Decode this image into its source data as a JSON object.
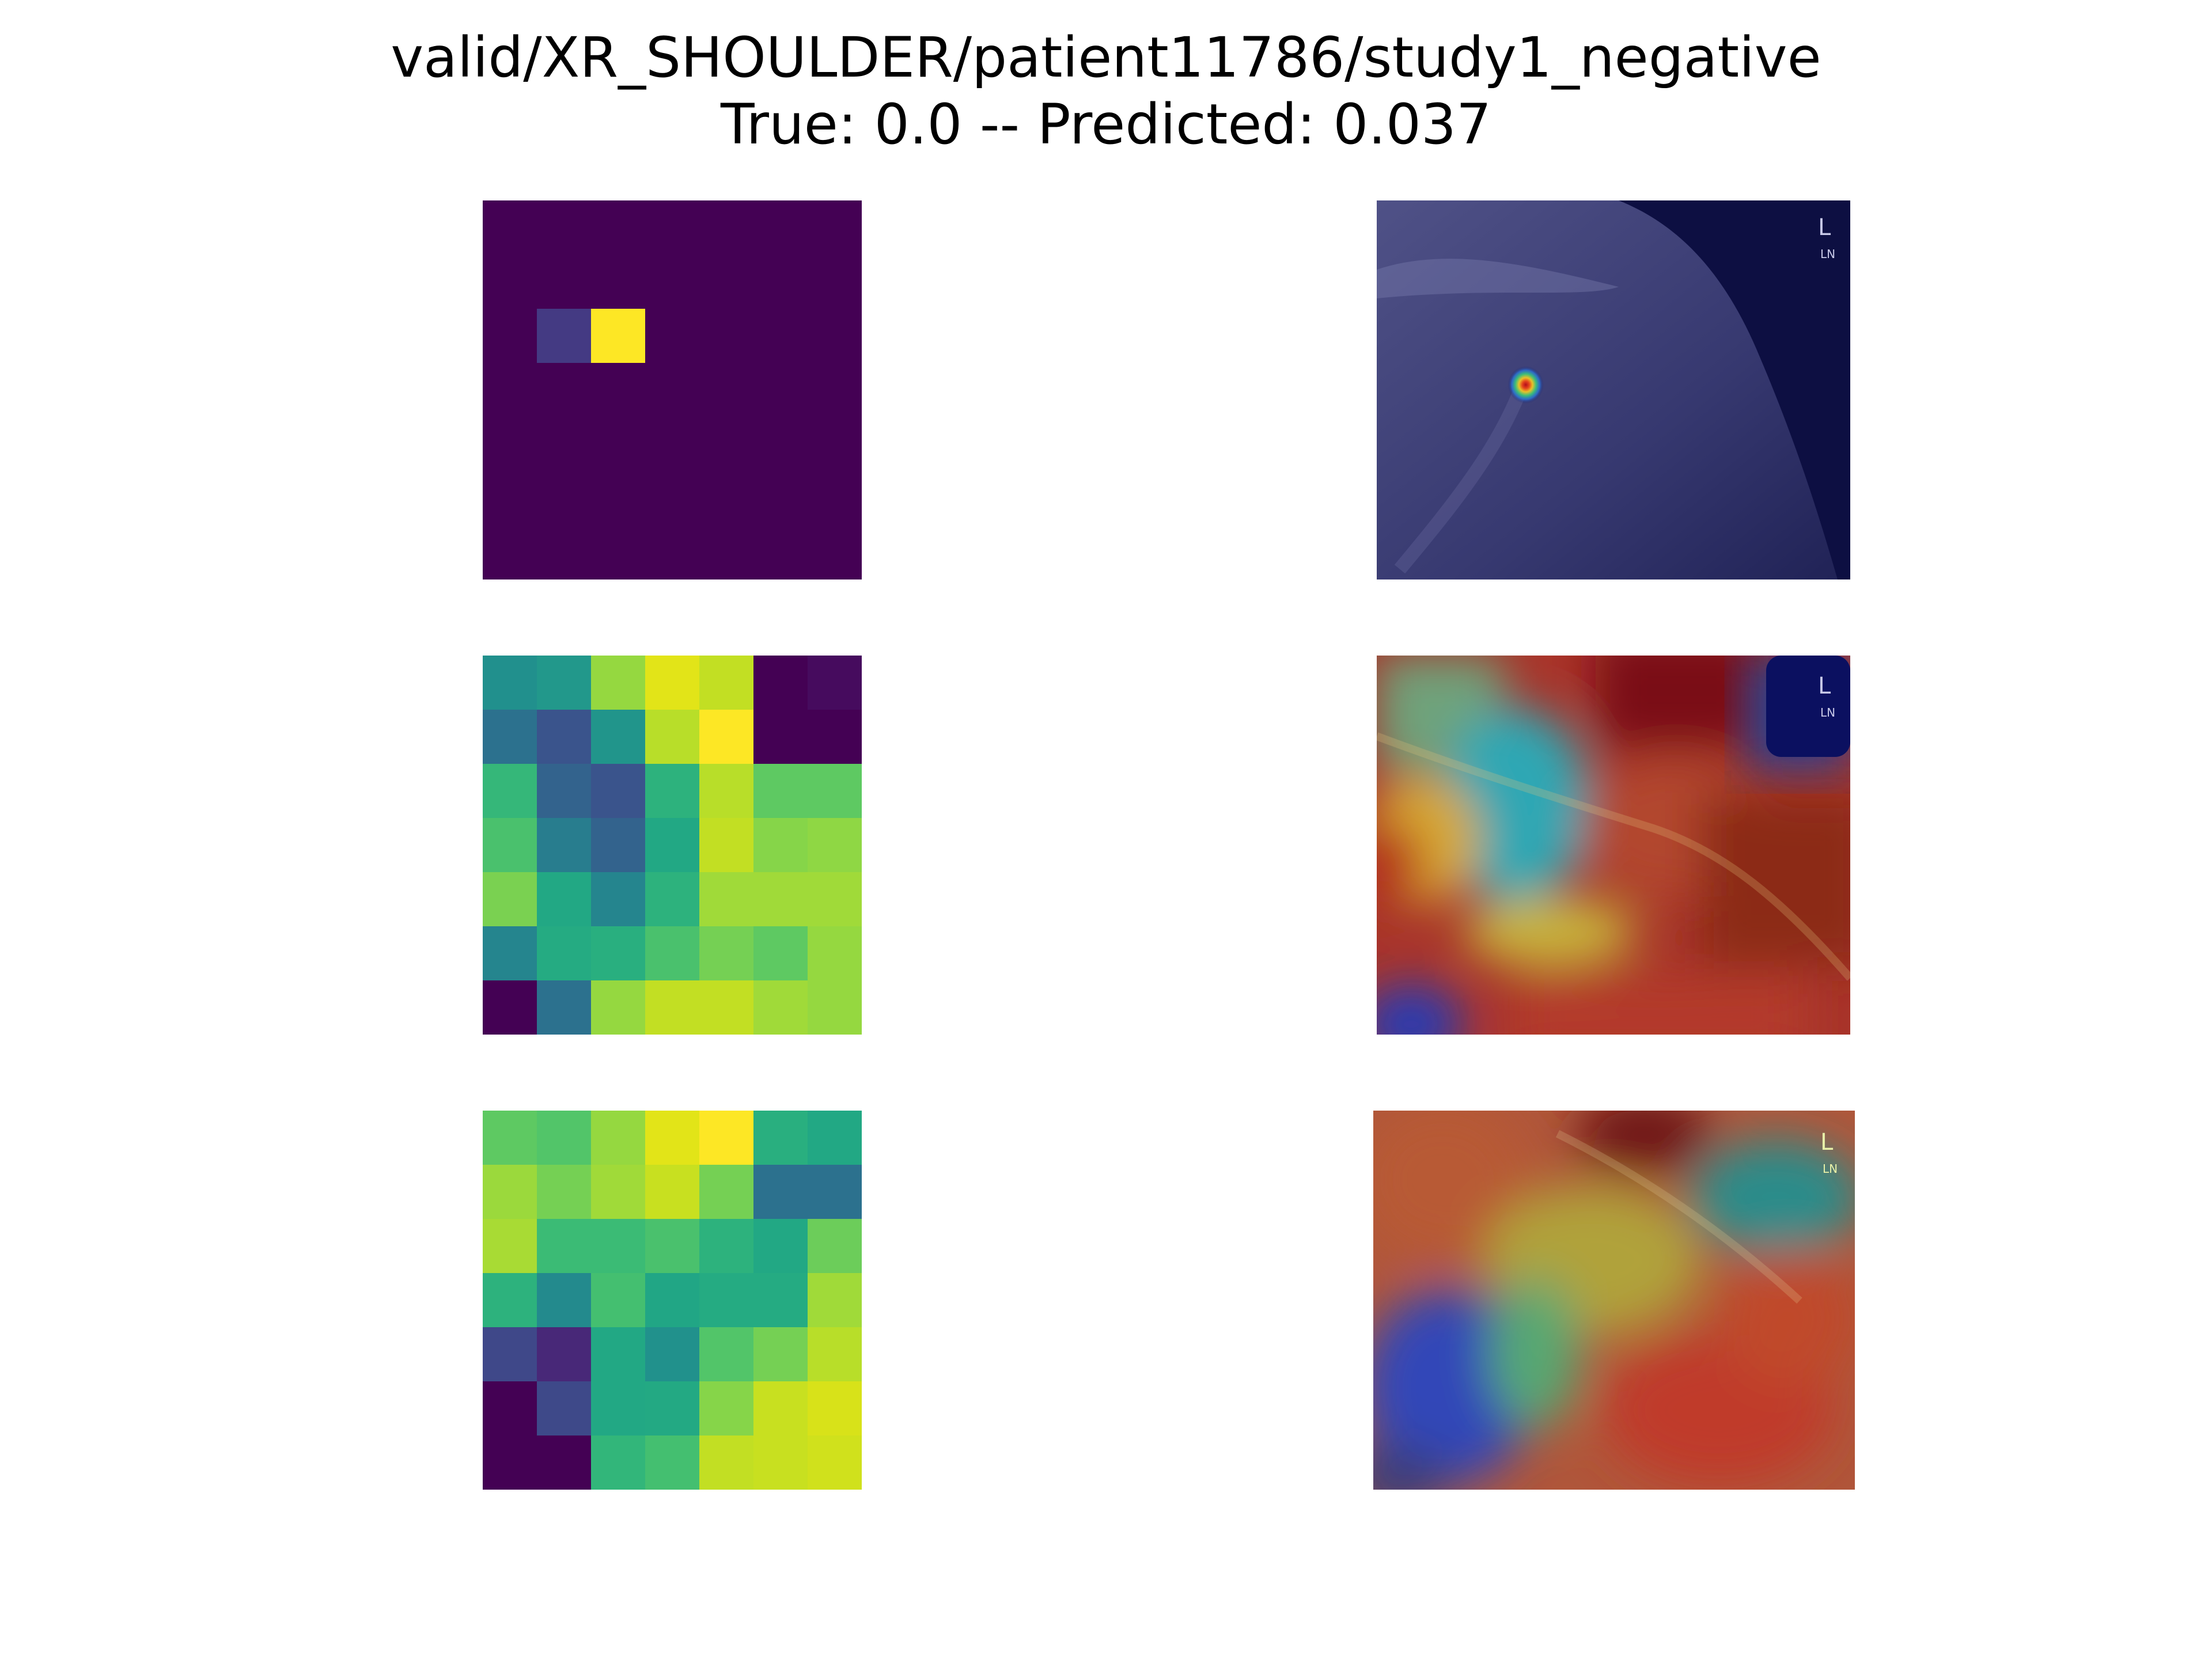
{
  "title": {
    "line1": "valid/XR_SHOULDER/patient11786/study1_negative",
    "line2": "True: 0.0 -- Predicted: 0.037"
  },
  "colors": {
    "background": "#ffffff",
    "colormap": "viridis",
    "overlay_colormap": "jet"
  },
  "heatmaps": [
    {
      "name": "activation-map-1",
      "grid": [
        [
          "#440154",
          "#440154",
          "#440154",
          "#440154",
          "#440154",
          "#440154",
          "#440154"
        ],
        [
          "#440154",
          "#440154",
          "#440154",
          "#440154",
          "#440154",
          "#440154",
          "#440154"
        ],
        [
          "#440154",
          "#443a83",
          "#fde725",
          "#440154",
          "#440154",
          "#440154",
          "#440154"
        ],
        [
          "#440154",
          "#440154",
          "#440154",
          "#440154",
          "#440154",
          "#440154",
          "#440154"
        ],
        [
          "#440154",
          "#440154",
          "#440154",
          "#440154",
          "#440154",
          "#440154",
          "#440154"
        ],
        [
          "#440154",
          "#440154",
          "#440154",
          "#440154",
          "#440154",
          "#440154",
          "#440154"
        ],
        [
          "#440154",
          "#440154",
          "#440154",
          "#440154",
          "#440154",
          "#440154",
          "#440154"
        ]
      ]
    },
    {
      "name": "activation-map-2",
      "grid": [
        [
          "#21908d",
          "#22988b",
          "#95d840",
          "#e2e418",
          "#c2df23",
          "#440154",
          "#460b5e"
        ],
        [
          "#2c718e",
          "#3a548c",
          "#21958b",
          "#b8de29",
          "#fde725",
          "#440154",
          "#440154"
        ],
        [
          "#35b779",
          "#33638d",
          "#3a548c",
          "#2db27d",
          "#b8de29",
          "#5ec962",
          "#5ec962"
        ],
        [
          "#4ac16d",
          "#287d8e",
          "#33638d",
          "#22a884",
          "#c2df23",
          "#86d549",
          "#8fd744"
        ],
        [
          "#7ad151",
          "#22a884",
          "#25858e",
          "#2db27d",
          "#a0da39",
          "#a0da39",
          "#a0da39"
        ],
        [
          "#25858e",
          "#25ab82",
          "#29af7f",
          "#4ac16d",
          "#75d054",
          "#5ec962",
          "#95d840"
        ],
        [
          "#440154",
          "#2c718e",
          "#95d840",
          "#c2df23",
          "#c2df23",
          "#a0da39",
          "#95d840"
        ]
      ]
    },
    {
      "name": "activation-map-3",
      "grid": [
        [
          "#5ec962",
          "#52c569",
          "#95d840",
          "#e2e418",
          "#fde725",
          "#29af7f",
          "#22a884"
        ],
        [
          "#9bd93c",
          "#75d054",
          "#a0da39",
          "#c8e020",
          "#75d054",
          "#2c718e",
          "#2c718e"
        ],
        [
          "#a8db34",
          "#3bbb75",
          "#3bbb75",
          "#4ac16d",
          "#2db27d",
          "#22a884",
          "#6ccd5a"
        ],
        [
          "#2db27d",
          "#238a8d",
          "#44bf70",
          "#21a685",
          "#25ab82",
          "#25ab82",
          "#a0da39"
        ],
        [
          "#3f4889",
          "#482878",
          "#22a884",
          "#21918c",
          "#52c569",
          "#75d054",
          "#b8de29"
        ],
        [
          "#440154",
          "#3e4989",
          "#22a884",
          "#23a983",
          "#86d549",
          "#c8e020",
          "#d8e219"
        ],
        [
          "#440154",
          "#440154",
          "#32b67a",
          "#44bf70",
          "#c2df23",
          "#c8e020",
          "#d0e11c"
        ]
      ]
    }
  ],
  "overlays": [
    {
      "name": "gradcam-overlay-1",
      "marker_text": "L",
      "marker_subtext": "LN"
    },
    {
      "name": "gradcam-overlay-2",
      "marker_text": "L",
      "marker_subtext": "LN"
    },
    {
      "name": "gradcam-overlay-3",
      "marker_text": "L",
      "marker_subtext": "LN"
    }
  ]
}
